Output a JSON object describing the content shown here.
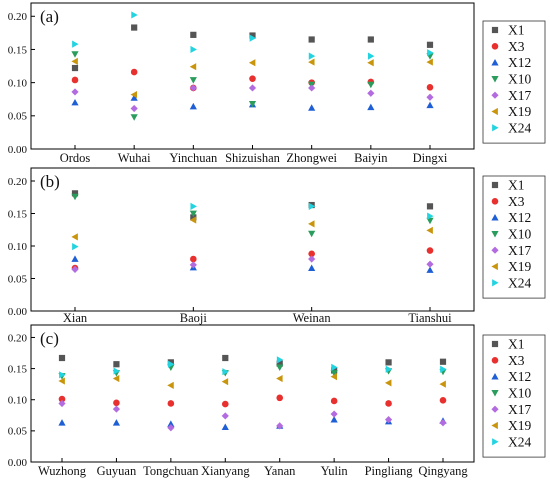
{
  "series_style": {
    "X1": {
      "color": "#555555",
      "marker": "square"
    },
    "X3": {
      "color": "#e8302e",
      "marker": "circle"
    },
    "X12": {
      "color": "#1f5fd6",
      "marker": "triangle-up"
    },
    "X10": {
      "color": "#2a9d5c",
      "marker": "triangle-down"
    },
    "X17": {
      "color": "#b36be0",
      "marker": "diamond"
    },
    "X19": {
      "color": "#c9950c",
      "marker": "triangle-left"
    },
    "X24": {
      "color": "#22d3e0",
      "marker": "triangle-right"
    }
  },
  "chart_data": [
    {
      "type": "scatter",
      "panel_label": "(a)",
      "categories": [
        "Ordos",
        "Wuhai",
        "Yinchuan",
        "Shizuishan",
        "Zhongwei",
        "Baiyin",
        "Dingxi"
      ],
      "yticks": [
        "0.00",
        "0.05",
        "0.10",
        "0.15",
        "0.20"
      ],
      "ylim": [
        0,
        0.22
      ],
      "legend_position": "right",
      "series": [
        {
          "name": "X1",
          "values": [
            0.122,
            0.183,
            0.172,
            0.171,
            0.165,
            0.165,
            0.157
          ]
        },
        {
          "name": "X3",
          "values": [
            0.104,
            0.116,
            0.092,
            0.106,
            0.1,
            0.101,
            0.093
          ]
        },
        {
          "name": "X12",
          "values": [
            0.07,
            0.077,
            0.064,
            0.067,
            0.062,
            0.063,
            0.066
          ]
        },
        {
          "name": "X10",
          "values": [
            0.143,
            0.048,
            0.104,
            0.068,
            0.097,
            0.097,
            0.14
          ]
        },
        {
          "name": "X17",
          "values": [
            0.086,
            0.061,
            0.092,
            0.092,
            0.092,
            0.084,
            0.078
          ]
        },
        {
          "name": "X19",
          "values": [
            0.132,
            0.082,
            0.124,
            0.13,
            0.131,
            0.13,
            0.131
          ]
        },
        {
          "name": "X24",
          "values": [
            0.158,
            0.202,
            0.15,
            0.167,
            0.14,
            0.14,
            0.145
          ]
        }
      ]
    },
    {
      "type": "scatter",
      "panel_label": "(b)",
      "categories": [
        "Xian",
        "Baoji",
        "Weinan",
        "Tianshui"
      ],
      "yticks": [
        "0.00",
        "0.05",
        "0.10",
        "0.15",
        "0.20"
      ],
      "ylim": [
        0,
        0.22
      ],
      "legend_position": "right",
      "series": [
        {
          "name": "X1",
          "values": [
            0.181,
            0.144,
            0.163,
            0.161
          ]
        },
        {
          "name": "X3",
          "values": [
            0.066,
            0.08,
            0.088,
            0.093
          ]
        },
        {
          "name": "X12",
          "values": [
            0.08,
            0.067,
            0.066,
            0.063
          ]
        },
        {
          "name": "X10",
          "values": [
            0.176,
            0.15,
            0.119,
            0.139
          ]
        },
        {
          "name": "X17",
          "values": [
            0.064,
            0.071,
            0.08,
            0.072
          ]
        },
        {
          "name": "X19",
          "values": [
            0.114,
            0.14,
            0.134,
            0.124
          ]
        },
        {
          "name": "X24",
          "values": [
            0.099,
            0.161,
            0.161,
            0.146
          ]
        }
      ]
    },
    {
      "type": "scatter",
      "panel_label": "(c)",
      "categories": [
        "Wuzhong",
        "Guyuan",
        "Tongchuan",
        "Xianyang",
        "Yanan",
        "Yulin",
        "Pingliang",
        "Qingyang"
      ],
      "yticks": [
        "0.00",
        "0.05",
        "0.10",
        "0.15",
        "0.20"
      ],
      "ylim": [
        0,
        0.22
      ],
      "legend_position": "right",
      "series": [
        {
          "name": "X1",
          "values": [
            0.167,
            0.157,
            0.16,
            0.167,
            0.158,
            0.147,
            0.16,
            0.161
          ]
        },
        {
          "name": "X3",
          "values": [
            0.101,
            0.095,
            0.094,
            0.093,
            0.103,
            0.098,
            0.094,
            0.099
          ]
        },
        {
          "name": "X12",
          "values": [
            0.063,
            0.063,
            0.061,
            0.056,
            0.058,
            0.068,
            0.065,
            0.066
          ]
        },
        {
          "name": "X10",
          "values": [
            0.138,
            0.143,
            0.152,
            0.143,
            0.152,
            0.143,
            0.146,
            0.145
          ]
        },
        {
          "name": "X17",
          "values": [
            0.094,
            0.085,
            0.055,
            0.074,
            0.058,
            0.077,
            0.068,
            0.063
          ]
        },
        {
          "name": "X19",
          "values": [
            0.13,
            0.134,
            0.123,
            0.129,
            0.134,
            0.137,
            0.127,
            0.125
          ]
        },
        {
          "name": "X24",
          "values": [
            0.14,
            0.146,
            0.157,
            0.145,
            0.164,
            0.152,
            0.149,
            0.149
          ]
        }
      ]
    }
  ]
}
